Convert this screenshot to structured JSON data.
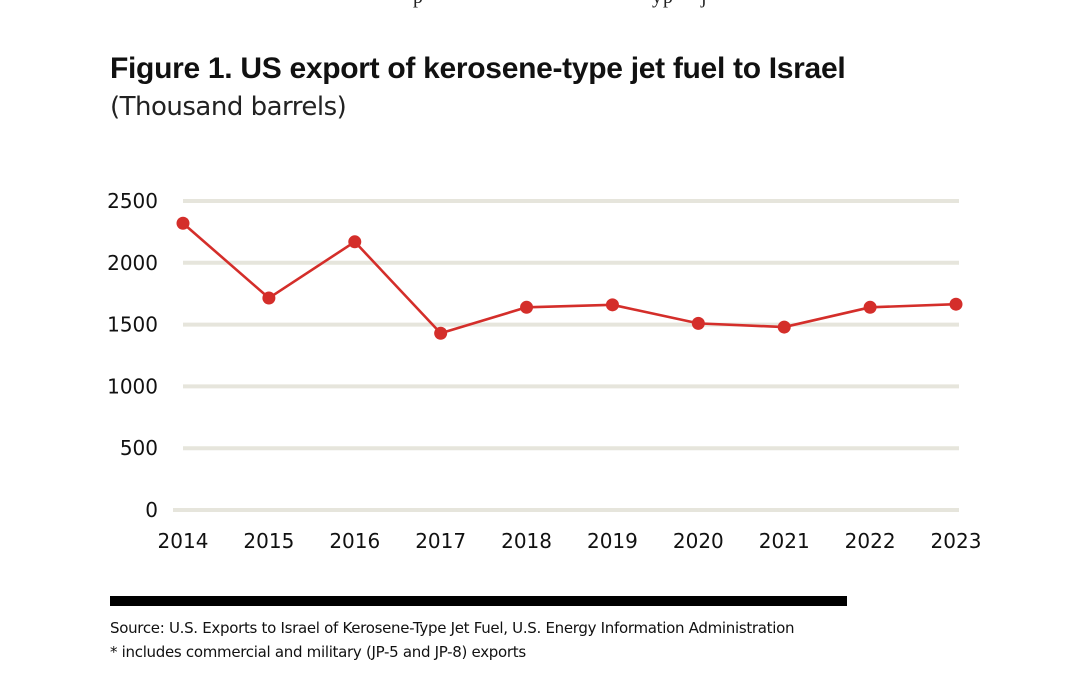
{
  "page": {
    "figure_title": "Figure 1. US export of kerosene-type jet fuel to Israel",
    "figure_subtitle": "(Thousand barrels)",
    "source": "Source: U.S. Exports to Israel of Kerosene-Type Jet Fuel, U.S. Energy Information Administration",
    "note": "* includes commercial and military (JP-5 and JP-8) exports"
  },
  "colors": {
    "series": "#d42e2a",
    "grid": "#e6e5dc",
    "rule": "#000000"
  },
  "chart_data": {
    "type": "line",
    "title": "Figure 1. US export of kerosene-type jet fuel to Israel",
    "subtitle": "(Thousand barrels)",
    "xlabel": "",
    "ylabel": "Thousand barrels",
    "categories": [
      "2014",
      "2015",
      "2016",
      "2017",
      "2018",
      "2019",
      "2020",
      "2021",
      "2022",
      "2023"
    ],
    "series": [
      {
        "name": "US export of kerosene-type jet fuel to Israel",
        "values": [
          2320,
          1715,
          2170,
          1430,
          1640,
          1660,
          1510,
          1480,
          1640,
          1665
        ],
        "markers": true
      }
    ],
    "ylim": [
      0,
      2500
    ],
    "yticks": [
      0,
      500,
      1000,
      1500,
      2000,
      2500
    ],
    "ytick_labels": [
      "0",
      "500",
      "1000",
      "1500",
      "2000",
      "2500"
    ],
    "grid": "horizontal",
    "legend": "none"
  }
}
